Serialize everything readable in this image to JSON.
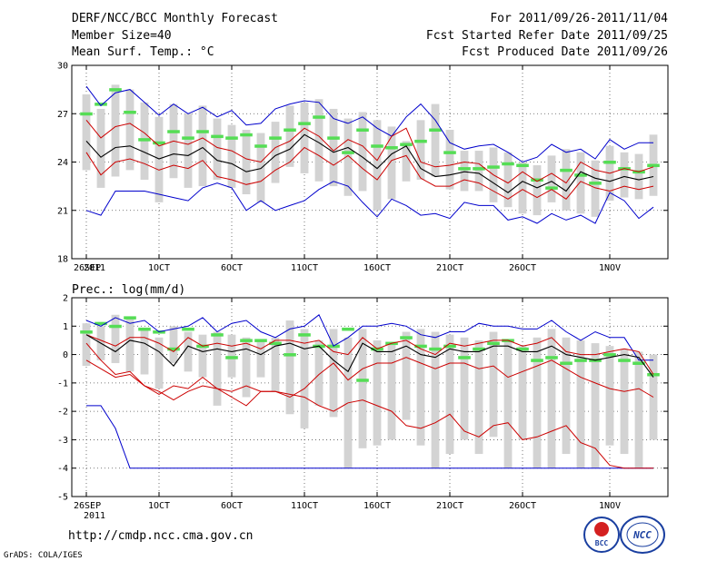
{
  "header": {
    "title": "DERF/NCC/BCC Monthly Forecast",
    "member_size": "Member Size=40",
    "variable": "Mean Surf. Temp.: °C",
    "period": "For 2011/09/26-2011/11/04",
    "start_date": "Fcst Started Refer Date 2011/09/25",
    "produced_date": "Fcst Produced Date 2011/09/26"
  },
  "footer": {
    "url": "http://cmdp.ncc.cma.gov.cn",
    "credit": "GrADS: COLA/IGES",
    "logo_bcc": "BCC",
    "logo_ncc": "NCC"
  },
  "colors": {
    "box": "#d3d3d3",
    "mean": "#000000",
    "inner": "#cc0000",
    "outer": "#0000cc",
    "clim": "#55dd55"
  },
  "x_ticks": [
    "26SEP",
    "1OCT",
    "6OCT",
    "11OCT",
    "16OCT",
    "21OCT",
    "26OCT",
    "1NOV"
  ],
  "x_year": "2011",
  "chart_data": [
    {
      "type": "line",
      "title": "Mean Surf. Temp.: °C",
      "x": [
        1,
        2,
        3,
        4,
        5,
        6,
        7,
        8,
        9,
        10,
        11,
        12,
        13,
        14,
        15,
        16,
        17,
        18,
        19,
        20,
        21,
        22,
        23,
        24,
        25,
        26,
        27,
        28,
        29,
        30,
        31,
        32,
        33,
        34,
        35,
        36,
        37,
        38,
        39,
        40
      ],
      "ylim": [
        18,
        30
      ],
      "yticks": [
        18,
        21,
        24,
        27,
        30
      ],
      "series": [
        {
          "name": "box_top",
          "values": [
            28.2,
            27.3,
            28.8,
            28.5,
            27.7,
            26.8,
            27.6,
            27.0,
            27.5,
            26.7,
            26.3,
            26.0,
            25.8,
            26.5,
            27.5,
            27.7,
            27.9,
            27.3,
            26.7,
            27.1,
            26.6,
            26.2,
            25.3,
            26.6,
            27.6,
            26.0,
            24.7,
            24.7,
            24.9,
            24.6,
            24.0,
            23.8,
            24.4,
            24.8,
            24.6,
            24.1,
            25.0,
            24.6,
            24.5,
            25.7
          ]
        },
        {
          "name": "box_bottom",
          "values": [
            23.5,
            22.4,
            23.1,
            23.5,
            22.9,
            21.5,
            23.0,
            22.4,
            22.5,
            22.9,
            22.4,
            22.0,
            21.5,
            22.7,
            23.7,
            23.3,
            22.8,
            22.5,
            21.9,
            22.2,
            21.0,
            21.7,
            22.8,
            22.9,
            23.1,
            22.3,
            22.2,
            22.2,
            21.5,
            21.2,
            20.8,
            20.7,
            21.5,
            21.0,
            20.8,
            20.6,
            21.6,
            21.8,
            21.7,
            21.9
          ]
        },
        {
          "name": "max",
          "values": [
            28.7,
            27.5,
            28.3,
            28.5,
            27.7,
            26.9,
            27.6,
            27.0,
            27.4,
            26.8,
            27.2,
            26.3,
            26.4,
            27.3,
            27.6,
            27.8,
            27.7,
            26.7,
            26.4,
            26.8,
            26.1,
            25.6,
            26.8,
            27.6,
            26.6,
            25.2,
            24.8,
            25.0,
            25.1,
            24.6,
            24.0,
            24.3,
            25.1,
            24.6,
            24.8,
            24.2,
            25.4,
            24.8,
            25.2,
            25.2
          ]
        },
        {
          "name": "q75",
          "values": [
            26.6,
            25.5,
            26.2,
            26.4,
            25.8,
            25.0,
            25.3,
            25.1,
            25.5,
            24.9,
            24.7,
            24.2,
            24.0,
            24.9,
            25.3,
            26.1,
            25.6,
            24.7,
            25.4,
            25.0,
            24.1,
            25.6,
            26.1,
            24.0,
            23.7,
            23.8,
            24.0,
            23.9,
            23.2,
            22.7,
            23.4,
            22.8,
            23.3,
            22.7,
            24.0,
            23.5,
            23.3,
            23.6,
            23.4,
            23.7
          ]
        },
        {
          "name": "mean",
          "values": [
            25.3,
            24.3,
            24.9,
            25.0,
            24.6,
            24.2,
            24.5,
            24.4,
            24.9,
            24.1,
            23.9,
            23.4,
            23.6,
            24.4,
            24.8,
            25.7,
            25.2,
            24.6,
            24.9,
            24.3,
            23.6,
            24.5,
            25.0,
            23.6,
            23.1,
            23.2,
            23.4,
            23.3,
            22.7,
            22.1,
            22.8,
            22.4,
            22.8,
            22.2,
            23.4,
            23.0,
            22.8,
            23.1,
            22.9,
            23.1
          ]
        },
        {
          "name": "q25",
          "values": [
            24.6,
            23.2,
            24.0,
            24.2,
            23.9,
            23.5,
            23.8,
            23.6,
            24.1,
            23.1,
            22.9,
            22.6,
            22.8,
            23.5,
            24.0,
            24.9,
            24.4,
            23.8,
            24.4,
            23.6,
            22.9,
            24.1,
            24.4,
            23.0,
            22.5,
            22.5,
            22.9,
            22.7,
            22.2,
            21.7,
            22.3,
            21.8,
            22.3,
            21.7,
            22.8,
            22.4,
            22.2,
            22.5,
            22.3,
            22.5
          ]
        },
        {
          "name": "min",
          "values": [
            21.0,
            20.7,
            22.2,
            22.2,
            22.2,
            22.0,
            21.8,
            21.6,
            22.4,
            22.7,
            22.4,
            21.0,
            21.6,
            21.0,
            21.3,
            21.6,
            22.3,
            22.8,
            22.5,
            21.5,
            20.6,
            21.7,
            21.3,
            20.7,
            20.8,
            20.5,
            21.5,
            21.3,
            21.3,
            20.4,
            20.6,
            20.2,
            20.8,
            20.4,
            20.7,
            20.2,
            22.1,
            21.6,
            20.5,
            21.2
          ]
        },
        {
          "name": "climatology",
          "values": [
            27.0,
            27.6,
            28.5,
            27.1,
            25.4,
            25.2,
            25.9,
            25.5,
            25.9,
            25.6,
            25.5,
            25.7,
            25.0,
            25.5,
            26.0,
            26.4,
            26.8,
            25.5,
            24.6,
            26.0,
            25.0,
            24.9,
            25.1,
            25.3,
            26.0,
            24.6,
            23.6,
            23.6,
            23.7,
            23.9,
            23.8,
            22.9,
            22.4,
            23.5,
            23.2,
            22.7,
            24.0,
            23.6,
            23.4,
            23.8
          ]
        }
      ]
    },
    {
      "type": "line",
      "title": "Prec.: log(mm/d)",
      "x": [
        1,
        2,
        3,
        4,
        5,
        6,
        7,
        8,
        9,
        10,
        11,
        12,
        13,
        14,
        15,
        16,
        17,
        18,
        19,
        20,
        21,
        22,
        23,
        24,
        25,
        26,
        27,
        28,
        29,
        30,
        31,
        32,
        33,
        34,
        35,
        36,
        37,
        38,
        39,
        40
      ],
      "ylim": [
        -5,
        2
      ],
      "yticks": [
        -5,
        -4,
        -3,
        -2,
        -1,
        0,
        1,
        2
      ],
      "series": [
        {
          "name": "box_top",
          "values": [
            1.1,
            1.0,
            1.4,
            1.3,
            0.9,
            0.6,
            1.0,
            0.8,
            0.7,
            0.8,
            0.7,
            0.6,
            0.5,
            0.6,
            1.2,
            0.9,
            0.5,
            0.9,
            0.6,
            0.9,
            0.5,
            0.4,
            0.8,
            0.9,
            0.8,
            0.7,
            0.6,
            0.5,
            0.8,
            0.5,
            0.3,
            0.6,
            0.9,
            0.6,
            0.5,
            0.4,
            0.3,
            0.2,
            0.1,
            0.0
          ]
        },
        {
          "name": "box_bottom",
          "values": [
            -0.4,
            -0.2,
            -0.3,
            -0.6,
            -0.7,
            -1.2,
            -0.3,
            -0.6,
            -0.8,
            -1.8,
            -0.8,
            -1.5,
            -0.8,
            -1.3,
            -2.1,
            -2.6,
            -1.8,
            -2.2,
            -4.0,
            -3.3,
            -3.2,
            -3.0,
            -2.3,
            -3.2,
            -4.0,
            -3.5,
            -3.0,
            -3.5,
            -2.9,
            -4.0,
            -3.0,
            -4.0,
            -4.0,
            -3.5,
            -4.0,
            -4.0,
            -3.2,
            -3.5,
            -4.0,
            -3.0
          ]
        },
        {
          "name": "max",
          "values": [
            1.2,
            1.0,
            1.3,
            1.1,
            1.2,
            0.8,
            0.9,
            1.0,
            1.3,
            0.8,
            1.1,
            1.2,
            0.8,
            0.6,
            0.9,
            1.0,
            1.4,
            0.3,
            0.6,
            1.0,
            1.0,
            1.1,
            1.0,
            0.7,
            0.6,
            0.8,
            0.8,
            1.1,
            1.0,
            1.0,
            0.9,
            0.9,
            1.2,
            0.8,
            0.5,
            0.8,
            0.6,
            0.6,
            -0.2,
            -0.2
          ]
        },
        {
          "name": "q75",
          "values": [
            0.7,
            0.5,
            0.3,
            0.6,
            0.6,
            0.4,
            0.1,
            0.6,
            0.3,
            0.4,
            0.3,
            0.4,
            0.2,
            0.5,
            0.5,
            0.4,
            0.5,
            0.1,
            0.0,
            0.6,
            0.2,
            0.4,
            0.5,
            0.2,
            0.0,
            0.4,
            0.3,
            0.4,
            0.5,
            0.5,
            0.3,
            0.4,
            0.6,
            0.1,
            0.0,
            0.0,
            0.1,
            0.2,
            0.1,
            -0.7
          ]
        },
        {
          "name": "mean",
          "values": [
            0.7,
            0.4,
            0.1,
            0.5,
            0.4,
            0.1,
            -0.4,
            0.3,
            0.1,
            0.2,
            0.1,
            0.2,
            0.0,
            0.3,
            0.4,
            0.2,
            0.3,
            -0.2,
            -0.6,
            0.4,
            0.1,
            0.1,
            0.3,
            0.0,
            -0.1,
            0.2,
            0.1,
            0.1,
            0.3,
            0.3,
            0.1,
            0.1,
            0.3,
            0.0,
            -0.1,
            -0.2,
            -0.1,
            0.0,
            -0.1,
            -0.8
          ]
        },
        {
          "name": "q25",
          "values": [
            0.4,
            -0.2,
            -0.7,
            -0.6,
            -1.1,
            -1.4,
            -1.1,
            -1.2,
            -0.8,
            -1.2,
            -1.3,
            -1.1,
            -1.3,
            -1.3,
            -1.5,
            -1.2,
            -0.7,
            -0.3,
            -0.9,
            -0.5,
            -0.3,
            -0.3,
            -0.1,
            -0.3,
            -0.5,
            -0.3,
            -0.3,
            -0.5,
            -0.4,
            -0.8,
            -0.6,
            -0.4,
            -0.2,
            -0.5,
            -0.8,
            -1.0,
            -1.2,
            -1.3,
            -1.2,
            -1.5
          ]
        },
        {
          "name": "min",
          "values": [
            -1.8,
            -1.8,
            -2.6,
            -4.0,
            -4.0,
            -4.0,
            -4.0,
            -4.0,
            -4.0,
            -4.0,
            -4.0,
            -4.0,
            -4.0,
            -4.0,
            -4.0,
            -4.0,
            -4.0,
            -4.0,
            -4.0,
            -4.0,
            -4.0,
            -4.0,
            -4.0,
            -4.0,
            -4.0,
            -4.0,
            -4.0,
            -4.0,
            -4.0,
            -4.0,
            -4.0,
            -4.0,
            -4.0,
            -4.0,
            -4.0,
            -4.0,
            -4.0,
            -4.0,
            -4.0,
            -4.0
          ]
        },
        {
          "name": "q10",
          "values": [
            -0.2,
            -0.5,
            -0.8,
            -0.7,
            -1.1,
            -1.3,
            -1.6,
            -1.3,
            -1.1,
            -1.2,
            -1.5,
            -1.8,
            -1.3,
            -1.3,
            -1.4,
            -1.5,
            -1.8,
            -2.0,
            -1.7,
            -1.6,
            -1.8,
            -2.0,
            -2.5,
            -2.6,
            -2.4,
            -2.1,
            -2.7,
            -2.9,
            -2.5,
            -2.4,
            -3.0,
            -2.9,
            -2.7,
            -2.5,
            -3.1,
            -3.3,
            -3.9,
            -4.0,
            -4.0,
            -4.0
          ]
        },
        {
          "name": "climatology",
          "values": [
            0.8,
            1.1,
            1.0,
            1.3,
            0.9,
            0.8,
            0.2,
            0.9,
            0.3,
            0.7,
            -0.1,
            0.5,
            0.5,
            0.4,
            0.0,
            0.7,
            0.3,
            0.3,
            0.9,
            -0.9,
            0.2,
            0.4,
            0.6,
            0.3,
            0.2,
            0.3,
            -0.1,
            0.2,
            0.4,
            0.5,
            0.2,
            -0.2,
            -0.1,
            -0.3,
            -0.2,
            -0.2,
            0.0,
            -0.2,
            -0.3,
            -0.7
          ]
        }
      ]
    }
  ]
}
